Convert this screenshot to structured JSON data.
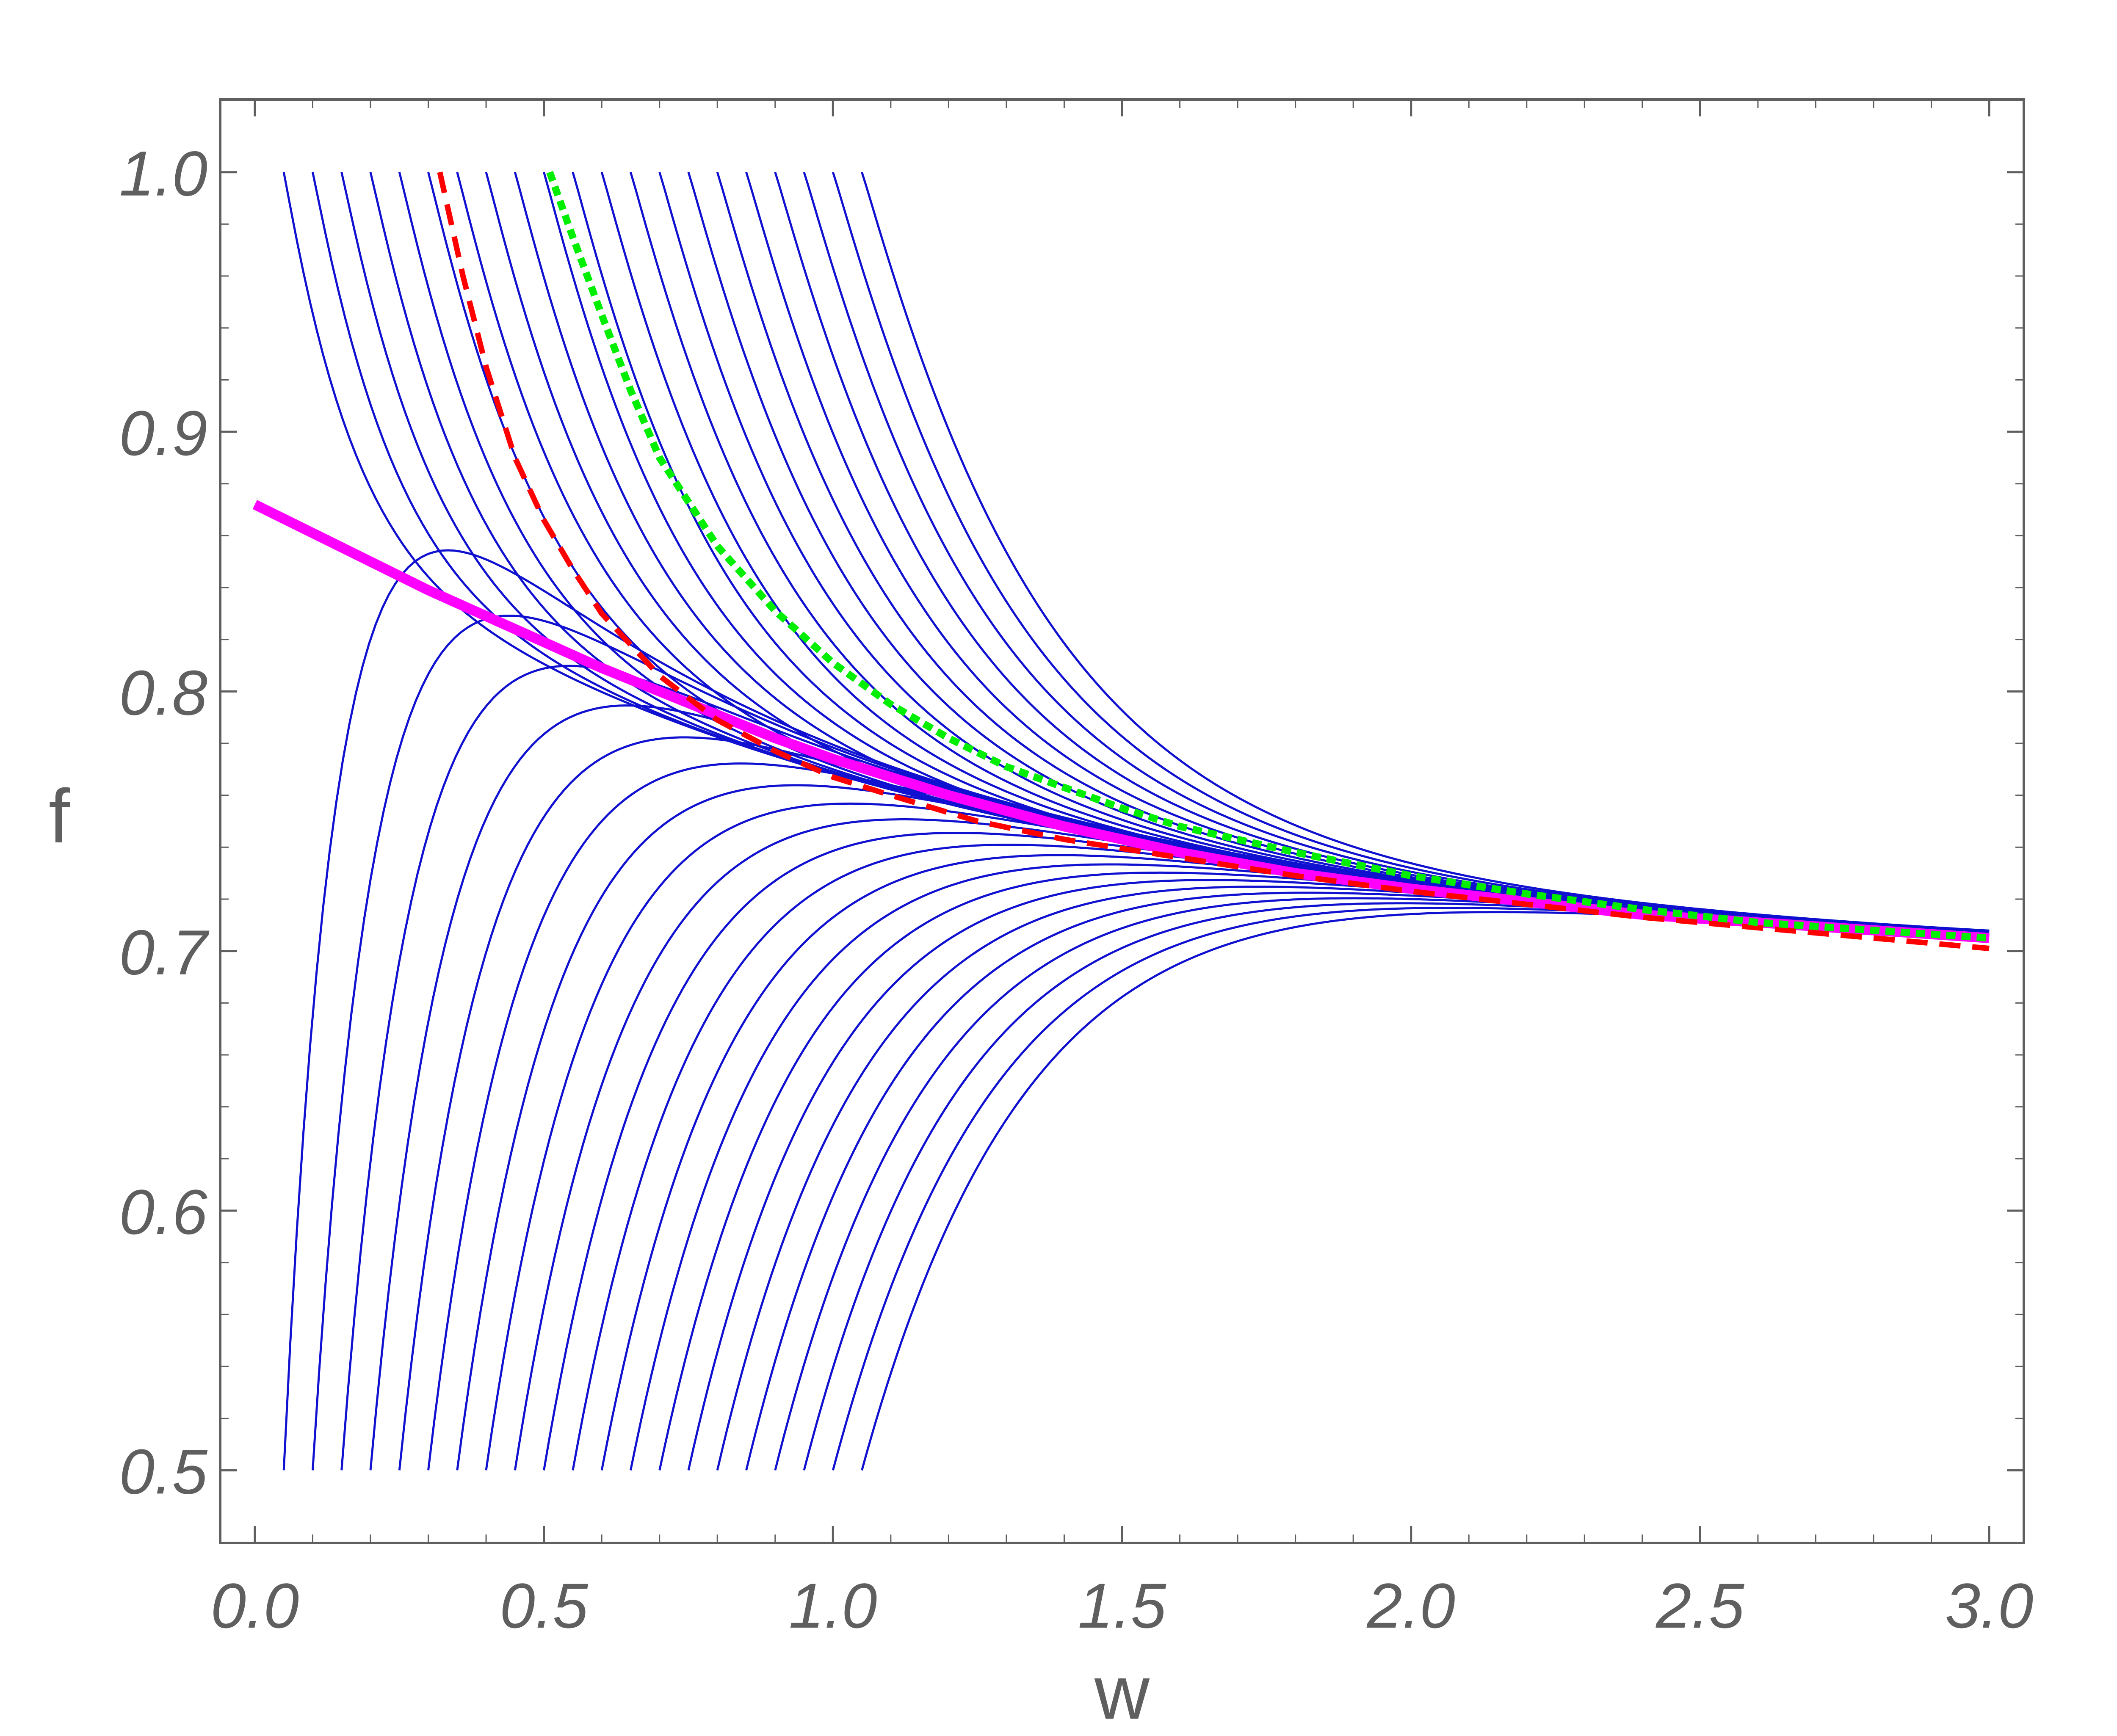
{
  "chart_data": {
    "type": "line",
    "xlabel": "w",
    "ylabel": "f",
    "xlim": [
      -0.06,
      3.06
    ],
    "ylim": [
      0.472,
      1.028
    ],
    "xticks": [
      0.0,
      0.5,
      1.0,
      1.5,
      2.0,
      2.5,
      3.0
    ],
    "xtick_labels": [
      "0.0",
      "0.5",
      "1.0",
      "1.5",
      "2.0",
      "2.5",
      "3.0"
    ],
    "yticks": [
      0.5,
      0.6,
      0.7,
      0.8,
      0.9,
      1.0
    ],
    "ytick_labels": [
      "0.5",
      "0.6",
      "0.7",
      "0.8",
      "0.9",
      "1.0"
    ],
    "grid": false,
    "colors": {
      "blue_family": "#1010d0",
      "magenta": "#ff00ff",
      "red_dashed": "#ff0000",
      "green_dotted": "#00ee00",
      "axis": "#5f5f5f"
    },
    "families": [
      {
        "description": "upper family, f starts at 1.0 and decays toward the magenta curve",
        "start_w": [
          0.05,
          0.1,
          0.15,
          0.2,
          0.25,
          0.3,
          0.35,
          0.4,
          0.45,
          0.5,
          0.55,
          0.6,
          0.65,
          0.7,
          0.75,
          0.8,
          0.85,
          0.9,
          0.95,
          1.0,
          1.05
        ],
        "start_f": 1.0,
        "line_style": "solid",
        "color": "#1010d0"
      },
      {
        "description": "lower family, f starts at 0.5 and rises toward the magenta curve",
        "start_w": [
          0.05,
          0.1,
          0.15,
          0.2,
          0.25,
          0.3,
          0.35,
          0.4,
          0.45,
          0.5,
          0.55,
          0.6,
          0.65,
          0.7,
          0.75,
          0.8,
          0.85,
          0.9,
          0.95,
          1.0,
          1.05
        ],
        "start_f": 0.5,
        "line_style": "solid",
        "color": "#1010d0"
      }
    ],
    "series": [
      {
        "style": "solid-thick",
        "color": "#ff00ff",
        "x": [
          0.0,
          0.1,
          0.2,
          0.3,
          0.4,
          0.5,
          0.6,
          0.7,
          0.8,
          0.9,
          1.0,
          1.2,
          1.4,
          1.6,
          1.8,
          2.0,
          2.2,
          2.4,
          2.6,
          2.8,
          3.0
        ],
        "y": [
          0.872,
          0.861,
          0.85,
          0.839,
          0.829,
          0.819,
          0.809,
          0.8,
          0.791,
          0.782,
          0.774,
          0.76,
          0.748,
          0.738,
          0.73,
          0.724,
          0.719,
          0.714,
          0.711,
          0.708,
          0.705
        ]
      },
      {
        "style": "dashed",
        "color": "#ff0000",
        "x": [
          0.32,
          0.36,
          0.4,
          0.45,
          0.5,
          0.55,
          0.6,
          0.7,
          0.8,
          0.9,
          1.0,
          1.1,
          1.25,
          1.4,
          1.6,
          1.8,
          2.0,
          2.2,
          2.4,
          2.6,
          2.8,
          3.0
        ],
        "y": [
          1.0,
          0.96,
          0.925,
          0.89,
          0.866,
          0.847,
          0.83,
          0.806,
          0.789,
          0.777,
          0.767,
          0.76,
          0.75,
          0.743,
          0.736,
          0.729,
          0.723,
          0.718,
          0.713,
          0.709,
          0.705,
          0.701
        ]
      },
      {
        "style": "dotted",
        "color": "#00ee00",
        "x": [
          0.51,
          0.55,
          0.6,
          0.65,
          0.7,
          0.8,
          0.9,
          1.0,
          1.1,
          1.2,
          1.3,
          1.4,
          1.5,
          1.6,
          1.8,
          2.0,
          2.2,
          2.4,
          2.6,
          2.8,
          3.0
        ],
        "y": [
          1.0,
          0.975,
          0.945,
          0.916,
          0.89,
          0.856,
          0.831,
          0.811,
          0.795,
          0.782,
          0.771,
          0.763,
          0.755,
          0.748,
          0.738,
          0.729,
          0.722,
          0.716,
          0.711,
          0.708,
          0.705
        ]
      }
    ]
  }
}
